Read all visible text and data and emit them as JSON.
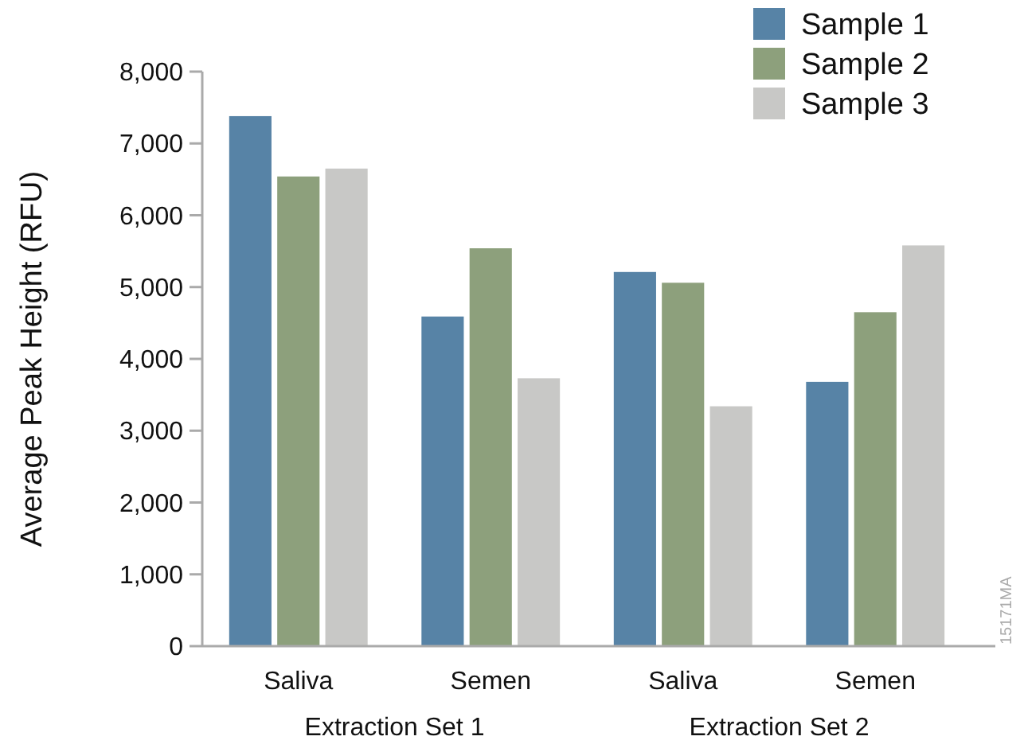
{
  "chart_data": {
    "type": "bar",
    "ylabel": "Average Peak Height (RFU)",
    "categories": [
      "Saliva",
      "Semen",
      "Saliva",
      "Semen"
    ],
    "series": [
      {
        "name": "Sample 1",
        "color": "#5783a6",
        "values": [
          7380,
          4590,
          5210,
          3680
        ]
      },
      {
        "name": "Sample 2",
        "color": "#8da07c",
        "values": [
          6540,
          5540,
          5060,
          4650
        ]
      },
      {
        "name": "Sample 3",
        "color": "#c8c8c6",
        "values": [
          6650,
          3730,
          3340,
          5580
        ]
      }
    ],
    "ylim": [
      0,
      8000
    ],
    "yticks": [
      {
        "value": 0,
        "label": "0"
      },
      {
        "value": 1000,
        "label": "1,000"
      },
      {
        "value": 2000,
        "label": "2,000"
      },
      {
        "value": 3000,
        "label": "3,000"
      },
      {
        "value": 4000,
        "label": "4,000"
      },
      {
        "value": 5000,
        "label": "5,000"
      },
      {
        "value": 6000,
        "label": "6,000"
      },
      {
        "value": 7000,
        "label": "7,000"
      },
      {
        "value": 8000,
        "label": "8,000"
      }
    ],
    "annotations": [
      "Extraction Set 1",
      "Extraction Set 2",
      "15171MA"
    ],
    "grid": false,
    "legend": "top right"
  }
}
